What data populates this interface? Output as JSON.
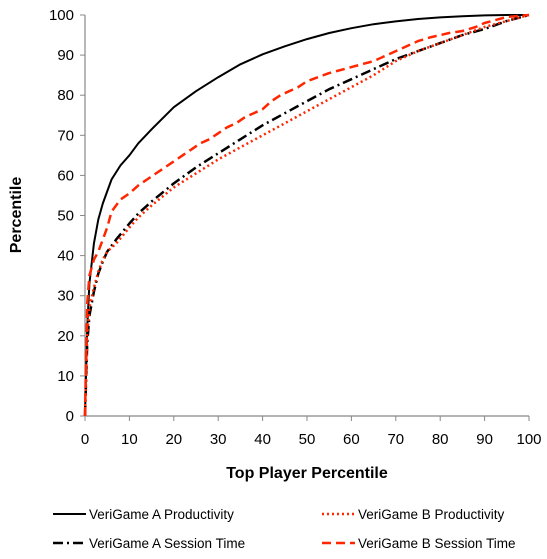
{
  "chart_data": {
    "type": "line",
    "title": "",
    "xlabel": "Top Player Percentile",
    "ylabel": "Percentile",
    "xlim": [
      0,
      100
    ],
    "ylim": [
      0,
      100
    ],
    "x_ticks": [
      "0",
      "10",
      "20",
      "30",
      "40",
      "50",
      "60",
      "70",
      "80",
      "90",
      "100"
    ],
    "y_ticks": [
      "0",
      "10",
      "20",
      "30",
      "40",
      "50",
      "60",
      "70",
      "80",
      "90",
      "100"
    ],
    "grid": false,
    "legend_position": "bottom",
    "series": [
      {
        "name": "VeriGame A Productivity",
        "color": "#000000",
        "line_style": "solid",
        "x": [
          0,
          0.5,
          1,
          2,
          3,
          4,
          5,
          6,
          8,
          10,
          12,
          15,
          20,
          25,
          30,
          35,
          40,
          45,
          50,
          55,
          60,
          65,
          70,
          75,
          80,
          85,
          90,
          95,
          100
        ],
        "y": [
          0,
          22,
          33,
          43,
          49,
          53,
          56,
          59,
          62.5,
          65,
          68,
          71.5,
          77,
          81,
          84.5,
          87.7,
          90.2,
          92.2,
          94,
          95.5,
          96.7,
          97.7,
          98.4,
          99,
          99.4,
          99.7,
          99.9,
          100,
          100
        ]
      },
      {
        "name": "VeriGame A Session Time",
        "color": "#000000",
        "line_style": "dash-dot",
        "x": [
          0,
          0.5,
          1,
          2,
          3,
          4,
          5,
          7,
          10,
          12,
          15,
          20,
          25,
          30,
          35,
          40,
          45,
          50,
          55,
          60,
          65,
          70,
          75,
          80,
          85,
          90,
          95,
          100
        ],
        "y": [
          0,
          18,
          25,
          31,
          35.5,
          38.5,
          41,
          44,
          48,
          50.5,
          53.5,
          58,
          62,
          65.5,
          69,
          72.5,
          75.5,
          78.5,
          81.5,
          84,
          86.5,
          89,
          91,
          93,
          95,
          96.5,
          98.5,
          100
        ]
      },
      {
        "name": "VeriGame B Productivity",
        "color": "#ff2600",
        "line_style": "dotted",
        "x": [
          0,
          0.5,
          1,
          2,
          3,
          4,
          5,
          7,
          10,
          12,
          15,
          20,
          25,
          30,
          35,
          40,
          45,
          50,
          55,
          60,
          65,
          70,
          75,
          80,
          85,
          90,
          95,
          100
        ],
        "y": [
          0,
          20,
          27,
          32,
          36,
          39,
          41,
          43,
          47,
          49.5,
          52.5,
          57,
          60.5,
          64,
          67,
          70,
          73,
          76,
          79,
          82,
          85,
          88.5,
          91,
          93,
          95,
          97,
          98.5,
          100
        ]
      },
      {
        "name": "VeriGame B Session Time",
        "color": "#ff2600",
        "line_style": "dashed",
        "x": [
          0,
          0.5,
          1,
          2,
          3,
          4,
          5,
          6,
          8,
          10,
          12,
          14,
          16,
          18,
          20,
          22,
          24,
          26,
          28,
          30,
          32,
          34,
          36,
          38,
          40,
          42,
          44,
          46,
          48,
          50,
          55,
          60,
          65,
          68,
          70,
          72,
          75,
          78,
          80,
          82,
          85,
          88,
          90,
          95,
          100
        ],
        "y": [
          0,
          28,
          35,
          39,
          41,
          44,
          47,
          51,
          54,
          55.5,
          57.5,
          59,
          60.5,
          62,
          63.5,
          65,
          66.5,
          68,
          69,
          70.5,
          72,
          73,
          74.5,
          75.5,
          76.5,
          78.5,
          80,
          81,
          82,
          83.5,
          85.5,
          87,
          88.5,
          90,
          91,
          92,
          93.5,
          94.5,
          95,
          95.5,
          96,
          97,
          98,
          99.5,
          100
        ]
      }
    ]
  }
}
